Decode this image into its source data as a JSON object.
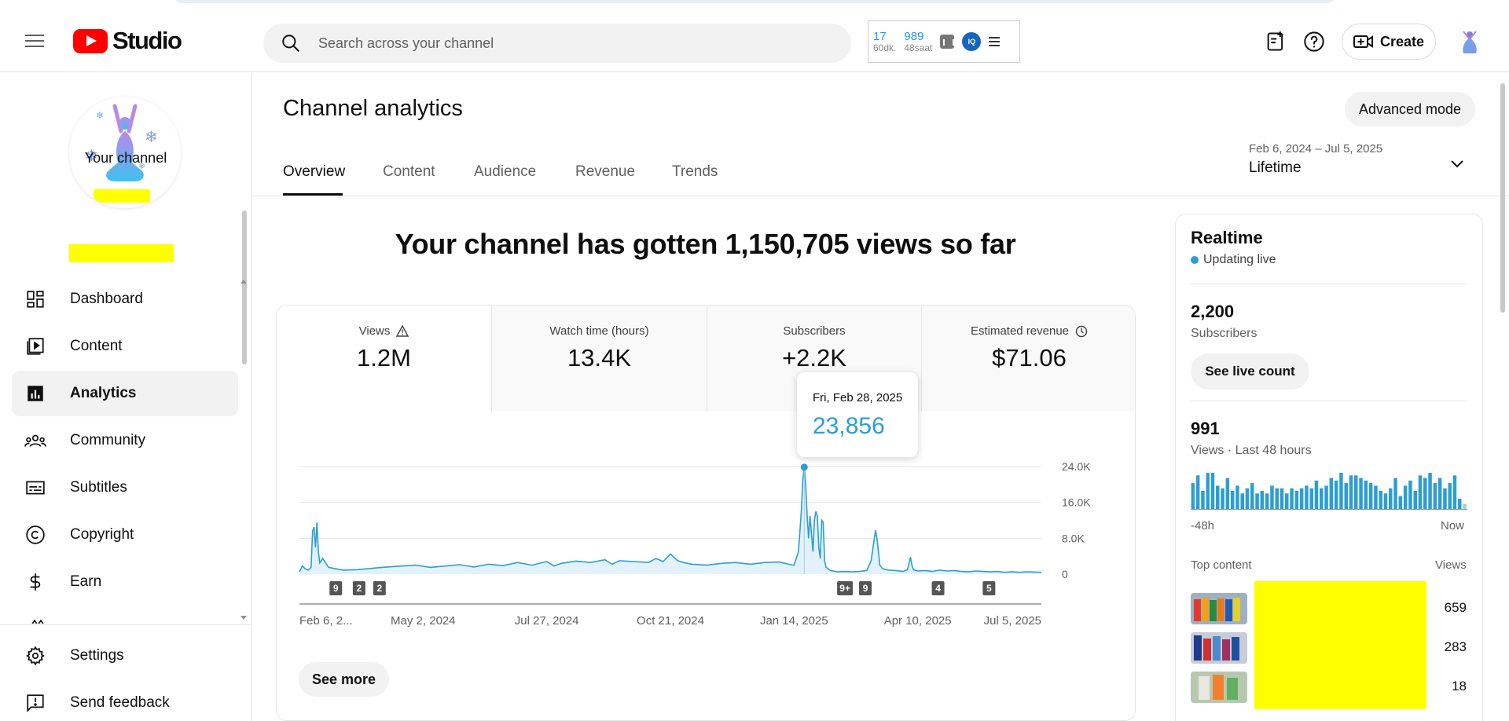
{
  "header": {
    "app_name": "Studio",
    "search_placeholder": "Search across your channel",
    "ext_stat1_value": "17",
    "ext_stat1_label": "60dk.",
    "ext_stat2_value": "989",
    "ext_stat2_label": "48saat",
    "ext_badge": "IQ",
    "create_label": "Create"
  },
  "sidebar": {
    "channel_label": "Your channel",
    "items": [
      {
        "label": "Dashboard",
        "icon": "dashboard-icon"
      },
      {
        "label": "Content",
        "icon": "content-icon"
      },
      {
        "label": "Analytics",
        "icon": "analytics-icon",
        "active": true
      },
      {
        "label": "Community",
        "icon": "community-icon"
      },
      {
        "label": "Subtitles",
        "icon": "subtitles-icon"
      },
      {
        "label": "Copyright",
        "icon": "copyright-icon"
      },
      {
        "label": "Earn",
        "icon": "earn-icon"
      }
    ],
    "footer_items": [
      {
        "label": "Settings",
        "icon": "gear-icon"
      },
      {
        "label": "Send feedback",
        "icon": "feedback-icon"
      }
    ]
  },
  "main": {
    "title": "Channel analytics",
    "advanced_mode": "Advanced mode",
    "tabs": [
      "Overview",
      "Content",
      "Audience",
      "Revenue",
      "Trends"
    ],
    "active_tab": "Overview",
    "date_range": "Feb 6, 2024 – Jul 5, 2025",
    "date_preset": "Lifetime",
    "headline": "Your channel has gotten 1,150,705 views so far",
    "metrics": [
      {
        "label": "Views",
        "value": "1.2M",
        "icon": "warning-icon",
        "selected": true
      },
      {
        "label": "Watch time (hours)",
        "value": "13.4K"
      },
      {
        "label": "Subscribers",
        "value": "+2.2K"
      },
      {
        "label": "Estimated revenue",
        "value": "$71.06",
        "icon": "clock-icon"
      }
    ],
    "tooltip": {
      "date": "Fri, Feb 28, 2025",
      "value": "23,856"
    },
    "see_more": "See more"
  },
  "chart_data": {
    "type": "area",
    "title": "",
    "xlabel": "",
    "ylabel": "",
    "x_ticks": [
      "Feb 6, 2...",
      "May 2, 2024",
      "Jul 27, 2024",
      "Oct 21, 2024",
      "Jan 14, 2025",
      "Apr 10, 2025",
      "Jul 5, 2025"
    ],
    "y_ticks": [
      "24.0K",
      "16.0K",
      "8.0K",
      "0"
    ],
    "ylim": [
      0,
      24000
    ],
    "grid": true,
    "highlight": {
      "date": "Fri, Feb 28, 2025",
      "value": 23856
    },
    "series": [
      {
        "color": "#2b9ed4",
        "points": [
          [
            0,
            500
          ],
          [
            2,
            1800
          ],
          [
            4,
            1200
          ],
          [
            6,
            900
          ],
          [
            8,
            1500
          ],
          [
            9,
            9500
          ],
          [
            10,
            10500
          ],
          [
            11,
            6000
          ],
          [
            12,
            11500
          ],
          [
            13,
            5000
          ],
          [
            14,
            2500
          ],
          [
            16,
            3500
          ],
          [
            18,
            2500
          ],
          [
            20,
            1500
          ],
          [
            25,
            1200
          ],
          [
            30,
            900
          ],
          [
            40,
            1000
          ],
          [
            50,
            1300
          ],
          [
            60,
            1600
          ],
          [
            70,
            1800
          ],
          [
            80,
            2000
          ],
          [
            90,
            1500
          ],
          [
            100,
            1800
          ],
          [
            110,
            2100
          ],
          [
            120,
            1600
          ],
          [
            130,
            2200
          ],
          [
            140,
            1900
          ],
          [
            150,
            2600
          ],
          [
            160,
            2000
          ],
          [
            170,
            2800
          ],
          [
            175,
            1800
          ],
          [
            180,
            2400
          ],
          [
            190,
            2900
          ],
          [
            200,
            2600
          ],
          [
            210,
            3200
          ],
          [
            215,
            2200
          ],
          [
            220,
            3000
          ],
          [
            230,
            2800
          ],
          [
            240,
            2600
          ],
          [
            245,
            3500
          ],
          [
            250,
            2800
          ],
          [
            255,
            4500
          ],
          [
            260,
            3000
          ],
          [
            265,
            2500
          ],
          [
            270,
            2200
          ],
          [
            280,
            2000
          ],
          [
            290,
            2400
          ],
          [
            300,
            2600
          ],
          [
            310,
            2200
          ],
          [
            320,
            2600
          ],
          [
            330,
            2700
          ],
          [
            335,
            2300
          ],
          [
            340,
            2000
          ],
          [
            343,
            5000
          ],
          [
            345,
            14000
          ],
          [
            346,
            21000
          ],
          [
            347,
            23856
          ],
          [
            348,
            20000
          ],
          [
            349,
            13000
          ],
          [
            350,
            8000
          ],
          [
            351,
            13000
          ],
          [
            352,
            9000
          ],
          [
            353,
            5000
          ],
          [
            354,
            12000
          ],
          [
            355,
            14000
          ],
          [
            356,
            13000
          ],
          [
            357,
            6000
          ],
          [
            358,
            3500
          ],
          [
            359,
            12000
          ],
          [
            360,
            11500
          ],
          [
            361,
            3000
          ],
          [
            362,
            1500
          ],
          [
            365,
            800
          ],
          [
            370,
            500
          ],
          [
            375,
            600
          ],
          [
            380,
            500
          ],
          [
            385,
            600
          ],
          [
            390,
            800
          ],
          [
            393,
            3000
          ],
          [
            395,
            7500
          ],
          [
            396,
            9800
          ],
          [
            397,
            8000
          ],
          [
            398,
            5000
          ],
          [
            399,
            2000
          ],
          [
            401,
            1200
          ],
          [
            405,
            900
          ],
          [
            410,
            800
          ],
          [
            415,
            600
          ],
          [
            418,
            1000
          ],
          [
            420,
            3800
          ],
          [
            421,
            2000
          ],
          [
            422,
            1000
          ],
          [
            425,
            700
          ],
          [
            430,
            800
          ],
          [
            435,
            600
          ],
          [
            440,
            900
          ],
          [
            445,
            700
          ],
          [
            450,
            800
          ],
          [
            455,
            600
          ],
          [
            460,
            500
          ],
          [
            465,
            700
          ],
          [
            470,
            600
          ],
          [
            475,
            500
          ],
          [
            480,
            600
          ],
          [
            485,
            400
          ],
          [
            490,
            500
          ],
          [
            495,
            400
          ],
          [
            500,
            500
          ],
          [
            510,
            400
          ]
        ]
      }
    ],
    "annotations": [
      {
        "x": 25,
        "label": "9"
      },
      {
        "x": 41,
        "label": "2"
      },
      {
        "x": 55,
        "label": "2"
      },
      {
        "x": 375,
        "label": "9+"
      },
      {
        "x": 389,
        "label": "9"
      },
      {
        "x": 439,
        "label": "4"
      },
      {
        "x": 474,
        "label": "5"
      }
    ]
  },
  "realtime": {
    "title": "Realtime",
    "live_label": "Updating live",
    "subscribers_value": "2,200",
    "subscribers_label": "Subscribers",
    "live_count_btn": "See live count",
    "views_value": "991",
    "views_label": "Views · Last 48 hours",
    "bar_values": [
      10,
      13,
      7,
      14,
      14,
      9,
      8,
      12,
      7,
      9,
      6,
      8,
      10,
      6,
      7,
      6,
      9,
      8,
      8,
      6,
      8,
      7,
      8,
      9,
      8,
      11,
      8,
      9,
      12,
      11,
      14,
      10,
      13,
      13,
      12,
      11,
      10,
      9,
      7,
      6,
      8,
      12,
      5,
      9,
      11,
      7,
      13,
      12,
      14,
      10,
      12,
      8,
      10,
      13,
      4,
      2
    ],
    "axis_start": "-48h",
    "axis_end": "Now",
    "top_content_label": "Top content",
    "top_content_views_label": "Views",
    "top_content": [
      {
        "views": "659"
      },
      {
        "views": "283"
      },
      {
        "views": "18"
      }
    ]
  }
}
